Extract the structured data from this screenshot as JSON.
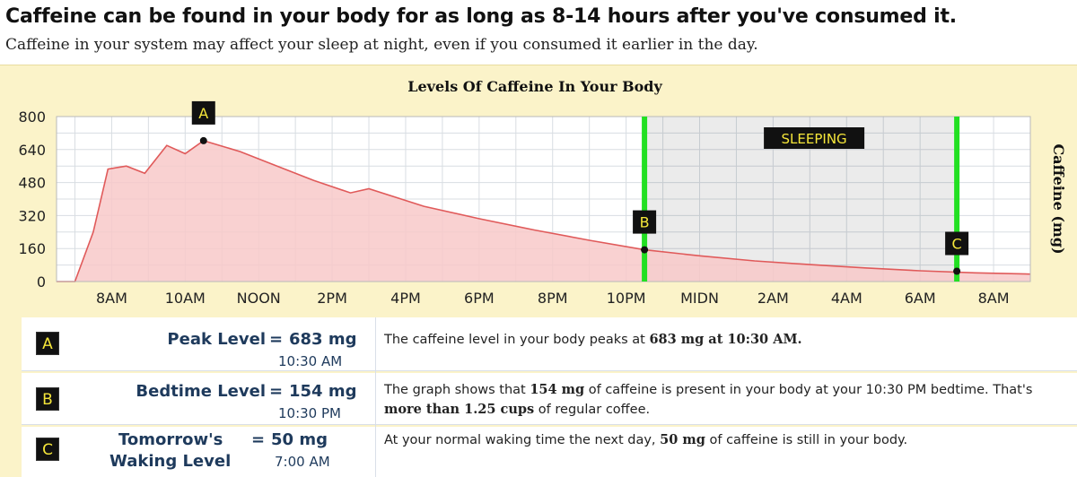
{
  "header": {
    "title": "Caffeine can be found in your body for as long as 8-14 hours after you've consumed it.",
    "subtitle": "Caffeine in your system may affect your sleep at night, even if you consumed it earlier in the day."
  },
  "colors": {
    "panel_bg": "#fbf3c9",
    "curve": "#e05a5a",
    "fill": "#f8c9c9",
    "sleep_zone": "#e4e4e4",
    "sleep_marker": "#22e022",
    "badge_bg": "#111111",
    "badge_fg": "#f5e63a",
    "label_text": "#1e3a5c"
  },
  "chart_data": {
    "type": "area",
    "title": "Levels Of Caffeine In Your Body",
    "ylabel": "Caffeine (mg)",
    "xlabel": "",
    "x_unit": "hours (clock time, day 1 starting 7AM)",
    "xlim": [
      6.5,
      33.0
    ],
    "ylim": [
      0,
      800
    ],
    "yticks": [
      0,
      160,
      320,
      480,
      640,
      800
    ],
    "xticks": [
      {
        "x": 8,
        "label": "8AM"
      },
      {
        "x": 10,
        "label": "10AM"
      },
      {
        "x": 12,
        "label": "NOON"
      },
      {
        "x": 14,
        "label": "2PM"
      },
      {
        "x": 16,
        "label": "4PM"
      },
      {
        "x": 18,
        "label": "6PM"
      },
      {
        "x": 20,
        "label": "8PM"
      },
      {
        "x": 22,
        "label": "10PM"
      },
      {
        "x": 24,
        "label": "MIDN"
      },
      {
        "x": 26,
        "label": "2AM"
      },
      {
        "x": 28,
        "label": "4AM"
      },
      {
        "x": 30,
        "label": "6AM"
      },
      {
        "x": 32,
        "label": "8AM"
      }
    ],
    "grid": true,
    "series": [
      {
        "x": [
          6.5,
          7.0,
          7.5,
          7.9,
          8.4,
          8.9,
          9.5,
          10.0,
          10.5,
          11.5,
          12.5,
          13.5,
          14.5,
          15.0,
          16.5,
          18.0,
          19.5,
          21.0,
          22.5,
          24.0,
          25.5,
          27.0,
          28.5,
          30.0,
          31.5,
          33.0
        ],
        "y": [
          0,
          0,
          240,
          545,
          560,
          525,
          660,
          620,
          683,
          630,
          560,
          490,
          430,
          450,
          365,
          305,
          250,
          200,
          154,
          125,
          100,
          82,
          66,
          52,
          42,
          36
        ]
      }
    ],
    "sleep_zone": {
      "start": 22.5,
      "end": 31.0,
      "label": "SLEEPING"
    },
    "markers": [
      {
        "id": "A",
        "x": 10.5,
        "y": 683
      },
      {
        "id": "B",
        "x": 22.5,
        "y": 154
      },
      {
        "id": "C",
        "x": 31.0,
        "y": 50
      }
    ]
  },
  "levels": [
    {
      "badge": "A",
      "label": "Peak Level",
      "eq": "=",
      "value": "683 mg",
      "time": "10:30 AM",
      "desc_parts": [
        "The caffeine level in your body peaks at ",
        "683 mg at 10:30 AM.",
        ""
      ]
    },
    {
      "badge": "B",
      "label": "Bedtime Level",
      "eq": "=",
      "value": "154 mg",
      "time": "10:30 PM",
      "desc_parts": [
        "The graph shows that ",
        "154 mg",
        " of caffeine is present in your body at your 10:30 PM bedtime. That's ",
        "more than 1.25 cups",
        " of regular coffee."
      ]
    },
    {
      "badge": "C",
      "label_line1": "Tomorrow's",
      "label_line2": "Waking Level",
      "eq": "=",
      "value": "50 mg",
      "time": "7:00 AM",
      "desc_parts": [
        "At your normal waking time the next day, ",
        "50 mg",
        " of caffeine is still in your body."
      ]
    }
  ]
}
